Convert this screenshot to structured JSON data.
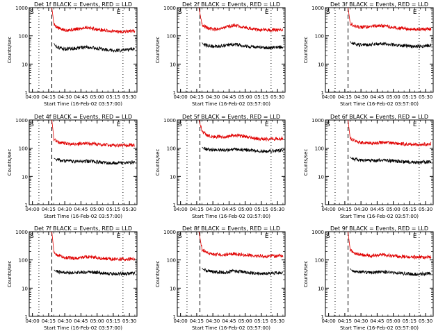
{
  "colors": {
    "events": "#000000",
    "lld": "#e00000",
    "axes": "#000000",
    "background": "#ffffff"
  },
  "chart_data": [
    {
      "type": "line",
      "title": "Det 1f BLACK = Events, RED = LLD",
      "xlabel": "Start Time (16-Feb-02 03:57:00)",
      "ylabel": "Counts/sec",
      "yscale": "log",
      "ylim": [
        1,
        1000
      ],
      "xlim": [
        "03:57:00",
        "05:37:00"
      ],
      "x_ticks": [
        "04:00",
        "04:15",
        "04:30",
        "04:45",
        "05:00",
        "05:15",
        "05:30"
      ],
      "y_ticks": [
        "1",
        "10",
        "100",
        "1000"
      ],
      "markers": {
        "start_label": "S",
        "end_label": "E",
        "dotted_lines": [
          "04:06",
          "05:24"
        ],
        "dashed_line": "04:18"
      },
      "series": [
        {
          "color": "#e00000",
          "x": [
            "04:18",
            "04:20",
            "04:25",
            "04:30",
            "04:40",
            "04:50",
            "05:00",
            "05:10",
            "05:20",
            "05:35"
          ],
          "values": [
            1000,
            250,
            180,
            160,
            170,
            200,
            170,
            150,
            140,
            150
          ]
        },
        {
          "color": "#000000",
          "x": [
            "04:20",
            "04:21",
            "04:25",
            "04:30",
            "04:40",
            "04:50",
            "05:00",
            "05:10",
            "05:20",
            "05:35"
          ],
          "values": [
            55,
            45,
            38,
            34,
            36,
            40,
            36,
            32,
            30,
            34
          ]
        }
      ]
    },
    {
      "type": "line",
      "title": "Det 2f BLACK = Events, RED = LLD",
      "xlabel": "Start Time (16-Feb-02 03:57:00)",
      "ylabel": "Counts/sec",
      "yscale": "log",
      "ylim": [
        1,
        1000
      ],
      "xlim": [
        "03:57:00",
        "05:37:00"
      ],
      "x_ticks": [
        "04:00",
        "04:15",
        "04:30",
        "04:45",
        "05:00",
        "05:15",
        "05:30"
      ],
      "y_ticks": [
        "1",
        "10",
        "100",
        "1000"
      ],
      "markers": {
        "start_label": "S",
        "end_label": "E",
        "dotted_lines": [
          "04:06",
          "05:24"
        ],
        "dashed_line": "04:18"
      },
      "series": [
        {
          "color": "#e00000",
          "x": [
            "04:17",
            "04:20",
            "04:25",
            "04:30",
            "04:40",
            "04:50",
            "05:00",
            "05:10",
            "05:20",
            "05:35"
          ],
          "values": [
            1000,
            250,
            190,
            170,
            190,
            240,
            200,
            170,
            160,
            165
          ]
        },
        {
          "color": "#000000",
          "x": [
            "04:20",
            "04:21",
            "04:25",
            "04:30",
            "04:40",
            "04:50",
            "05:00",
            "05:10",
            "05:20",
            "05:35"
          ],
          "values": [
            58,
            50,
            45,
            42,
            44,
            50,
            44,
            40,
            38,
            40
          ]
        }
      ]
    },
    {
      "type": "line",
      "title": "Det 3f BLACK = Events, RED = LLD",
      "xlabel": "Start Time (16-Feb-02 03:57:00)",
      "ylabel": "Counts/sec",
      "yscale": "log",
      "ylim": [
        1,
        1000
      ],
      "xlim": [
        "03:57:00",
        "05:37:00"
      ],
      "x_ticks": [
        "04:00",
        "04:15",
        "04:30",
        "04:45",
        "05:00",
        "05:15",
        "05:30"
      ],
      "y_ticks": [
        "1",
        "10",
        "100",
        "1000"
      ],
      "markers": {
        "start_label": "S",
        "end_label": "E",
        "dotted_lines": [
          "04:06",
          "05:24"
        ],
        "dashed_line": "04:18"
      },
      "series": [
        {
          "color": "#e00000",
          "x": [
            "04:18",
            "04:20",
            "04:25",
            "04:30",
            "04:40",
            "04:50",
            "05:00",
            "05:10",
            "05:20",
            "05:35"
          ],
          "values": [
            1000,
            280,
            220,
            200,
            220,
            230,
            200,
            180,
            170,
            175
          ]
        },
        {
          "color": "#000000",
          "x": [
            "04:20",
            "04:21",
            "04:25",
            "04:30",
            "04:40",
            "04:50",
            "05:00",
            "05:10",
            "05:20",
            "05:35"
          ],
          "values": [
            65,
            55,
            50,
            48,
            50,
            52,
            48,
            45,
            42,
            45
          ]
        }
      ]
    },
    {
      "type": "line",
      "title": "Det 4f BLACK = Events, RED = LLD",
      "xlabel": "Start Time (16-Feb-02 03:57:00)",
      "ylabel": "Counts/sec",
      "yscale": "log",
      "ylim": [
        1,
        1000
      ],
      "xlim": [
        "03:57:00",
        "05:37:00"
      ],
      "x_ticks": [
        "04:00",
        "04:15",
        "04:30",
        "04:45",
        "05:00",
        "05:15",
        "05:30"
      ],
      "y_ticks": [
        "1",
        "10",
        "100",
        "1000"
      ],
      "markers": {
        "start_label": "S",
        "end_label": "E",
        "dotted_lines": [
          "04:06",
          "05:24"
        ],
        "dashed_line": "04:18"
      },
      "series": [
        {
          "color": "#e00000",
          "x": [
            "04:18",
            "04:20",
            "04:25",
            "04:30",
            "04:40",
            "04:50",
            "05:00",
            "05:10",
            "05:20",
            "05:35"
          ],
          "values": [
            1000,
            200,
            160,
            150,
            140,
            150,
            140,
            130,
            125,
            130
          ]
        },
        {
          "color": "#000000",
          "x": [
            "04:20",
            "04:21",
            "04:25",
            "04:30",
            "04:40",
            "04:50",
            "05:00",
            "05:10",
            "05:20",
            "05:35"
          ],
          "values": [
            45,
            42,
            38,
            35,
            34,
            35,
            33,
            30,
            30,
            32
          ]
        }
      ]
    },
    {
      "type": "line",
      "title": "Det 5f BLACK = Events, RED = LLD",
      "xlabel": "Start Time (16-Feb-02 03:57:00)",
      "ylabel": "Counts/sec",
      "yscale": "log",
      "ylim": [
        1,
        1000
      ],
      "xlim": [
        "03:57:00",
        "05:37:00"
      ],
      "x_ticks": [
        "04:00",
        "04:15",
        "04:30",
        "04:45",
        "05:00",
        "05:15",
        "05:30"
      ],
      "y_ticks": [
        "1",
        "10",
        "100",
        "1000"
      ],
      "markers": {
        "start_label": "S",
        "end_label": "E",
        "dotted_lines": [
          "04:06",
          "05:24"
        ],
        "dashed_line": "04:18"
      },
      "series": [
        {
          "color": "#e00000",
          "x": [
            "04:17",
            "04:20",
            "04:25",
            "04:30",
            "04:40",
            "04:50",
            "05:00",
            "05:10",
            "05:20",
            "05:35"
          ],
          "values": [
            1000,
            400,
            280,
            260,
            250,
            290,
            260,
            220,
            210,
            220
          ]
        },
        {
          "color": "#000000",
          "x": [
            "04:20",
            "04:21",
            "04:25",
            "04:30",
            "04:40",
            "04:50",
            "05:00",
            "05:10",
            "05:20",
            "05:35"
          ],
          "values": [
            110,
            100,
            92,
            88,
            85,
            92,
            86,
            80,
            78,
            85
          ]
        }
      ]
    },
    {
      "type": "line",
      "title": "Det 6f BLACK = Events, RED = LLD",
      "xlabel": "Start Time (16-Feb-02 03:57:00)",
      "ylabel": "Counts/sec",
      "yscale": "log",
      "ylim": [
        1,
        1000
      ],
      "xlim": [
        "03:57:00",
        "05:37:00"
      ],
      "x_ticks": [
        "04:00",
        "04:15",
        "04:30",
        "04:45",
        "05:00",
        "05:15",
        "05:30"
      ],
      "y_ticks": [
        "1",
        "10",
        "100",
        "1000"
      ],
      "markers": {
        "start_label": "S",
        "end_label": "E",
        "dotted_lines": [
          "04:06",
          "05:24"
        ],
        "dashed_line": "04:18"
      },
      "series": [
        {
          "color": "#e00000",
          "x": [
            "04:18",
            "04:20",
            "04:25",
            "04:30",
            "04:40",
            "04:50",
            "05:00",
            "05:10",
            "05:20",
            "05:35"
          ],
          "values": [
            1000,
            220,
            180,
            160,
            150,
            165,
            150,
            140,
            135,
            140
          ]
        },
        {
          "color": "#000000",
          "x": [
            "04:20",
            "04:21",
            "04:25",
            "04:30",
            "04:40",
            "04:50",
            "05:00",
            "05:10",
            "05:20",
            "05:35"
          ],
          "values": [
            50,
            44,
            40,
            37,
            36,
            38,
            35,
            33,
            31,
            33
          ]
        }
      ]
    },
    {
      "type": "line",
      "title": "Det 7f BLACK = Events, RED = LLD",
      "xlabel": "Start Time (16-Feb-02 03:57:00)",
      "ylabel": "Counts/sec",
      "yscale": "log",
      "ylim": [
        1,
        1000
      ],
      "xlim": [
        "03:57:00",
        "05:37:00"
      ],
      "x_ticks": [
        "04:00",
        "04:15",
        "04:30",
        "04:45",
        "05:00",
        "05:15",
        "05:30"
      ],
      "y_ticks": [
        "1",
        "10",
        "100",
        "1000"
      ],
      "markers": {
        "start_label": "S",
        "end_label": "E",
        "dotted_lines": [
          "04:06",
          "05:24"
        ],
        "dashed_line": "04:18"
      },
      "series": [
        {
          "color": "#e00000",
          "x": [
            "04:18",
            "04:20",
            "04:25",
            "04:30",
            "04:40",
            "04:50",
            "05:00",
            "05:10",
            "05:20",
            "05:35"
          ],
          "values": [
            1000,
            180,
            140,
            120,
            115,
            130,
            120,
            110,
            105,
            110
          ]
        },
        {
          "color": "#000000",
          "x": [
            "04:20",
            "04:21",
            "04:25",
            "04:30",
            "04:40",
            "04:50",
            "05:00",
            "05:10",
            "05:20",
            "05:35"
          ],
          "values": [
            45,
            40,
            38,
            36,
            35,
            38,
            36,
            33,
            32,
            34
          ]
        }
      ]
    },
    {
      "type": "line",
      "title": "Det 8f BLACK = Events, RED = LLD",
      "xlabel": "Start Time (16-Feb-02 03:57:00)",
      "ylabel": "Counts/sec",
      "yscale": "log",
      "ylim": [
        1,
        1000
      ],
      "xlim": [
        "03:57:00",
        "05:37:00"
      ],
      "x_ticks": [
        "04:00",
        "04:15",
        "04:30",
        "04:45",
        "05:00",
        "05:15",
        "05:30"
      ],
      "y_ticks": [
        "1",
        "10",
        "100",
        "1000"
      ],
      "markers": {
        "start_label": "S",
        "end_label": "E",
        "dotted_lines": [
          "04:06",
          "05:24"
        ],
        "dashed_line": "04:18"
      },
      "series": [
        {
          "color": "#e00000",
          "x": [
            "04:17",
            "04:20",
            "04:25",
            "04:30",
            "04:40",
            "04:50",
            "05:00",
            "05:10",
            "05:20",
            "05:35"
          ],
          "values": [
            1000,
            230,
            180,
            160,
            150,
            165,
            150,
            140,
            135,
            140
          ]
        },
        {
          "color": "#000000",
          "x": [
            "04:20",
            "04:21",
            "04:25",
            "04:30",
            "04:40",
            "04:50",
            "05:00",
            "05:10",
            "05:20",
            "05:35"
          ],
          "values": [
            52,
            46,
            42,
            38,
            36,
            40,
            37,
            34,
            33,
            35
          ]
        }
      ]
    },
    {
      "type": "line",
      "title": "Det 9f BLACK = Events, RED = LLD",
      "xlabel": "Start Time (16-Feb-02 03:57:00)",
      "ylabel": "Counts/sec",
      "yscale": "log",
      "ylim": [
        1,
        1000
      ],
      "xlim": [
        "03:57:00",
        "05:37:00"
      ],
      "x_ticks": [
        "04:00",
        "04:15",
        "04:30",
        "04:45",
        "05:00",
        "05:15",
        "05:30"
      ],
      "y_ticks": [
        "1",
        "10",
        "100",
        "1000"
      ],
      "markers": {
        "start_label": "S",
        "end_label": "E",
        "dotted_lines": [
          "04:06",
          "05:24"
        ],
        "dashed_line": "04:18"
      },
      "series": [
        {
          "color": "#e00000",
          "x": [
            "04:18",
            "04:20",
            "04:25",
            "04:30",
            "04:40",
            "04:50",
            "05:00",
            "05:10",
            "05:20",
            "05:35"
          ],
          "values": [
            1000,
            220,
            170,
            150,
            140,
            155,
            140,
            130,
            125,
            128
          ]
        },
        {
          "color": "#000000",
          "x": [
            "04:20",
            "04:21",
            "04:25",
            "04:30",
            "04:40",
            "04:50",
            "05:00",
            "05:10",
            "05:20",
            "05:35"
          ],
          "values": [
            50,
            44,
            40,
            37,
            35,
            38,
            35,
            33,
            31,
            33
          ]
        }
      ]
    }
  ]
}
